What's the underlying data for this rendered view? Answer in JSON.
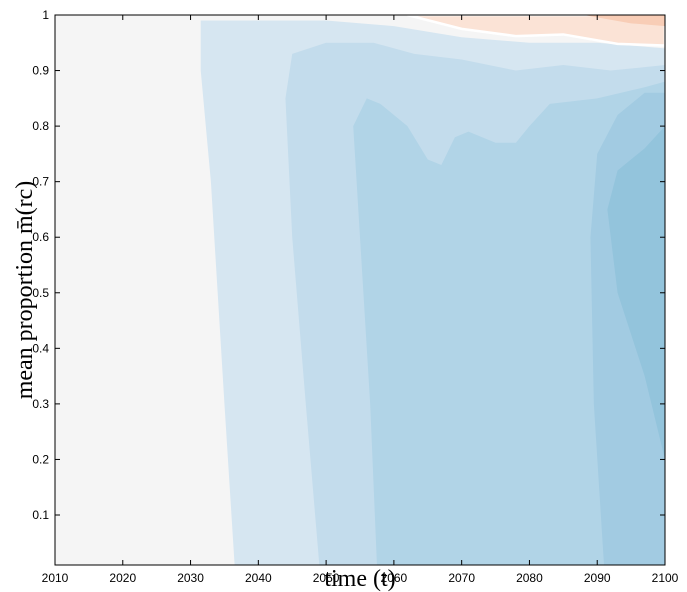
{
  "chart_data": {
    "type": "contour",
    "xlabel": "time (t)",
    "ylabel": "mean proportion m̄(rc)",
    "xlim": [
      2010,
      2100
    ],
    "ylim": [
      0.01,
      1
    ],
    "xticks": [
      2010,
      2020,
      2030,
      2040,
      2050,
      2060,
      2070,
      2080,
      2090,
      2100
    ],
    "yticks": [
      0.1,
      0.2,
      0.3,
      0.4,
      0.5,
      0.6,
      0.7,
      0.8,
      0.9,
      1
    ],
    "background": "#f5f5f5",
    "regions": [
      {
        "color": "#d6e6f1",
        "x": [
          2036.5,
          2035,
          2033,
          2031.5,
          2031.5,
          2050,
          2060,
          2070,
          2080,
          2090,
          2100,
          2100
        ],
        "y": [
          0.01,
          0.3,
          0.7,
          0.9,
          0.99,
          0.99,
          0.98,
          0.96,
          0.95,
          0.95,
          0.94,
          0.01
        ]
      },
      {
        "color": "#c3dcec",
        "x": [
          2049,
          2047,
          2045,
          2044,
          2045,
          2050,
          2057,
          2063,
          2070,
          2078,
          2085,
          2092,
          2100,
          2100
        ],
        "y": [
          0.01,
          0.3,
          0.6,
          0.85,
          0.93,
          0.95,
          0.95,
          0.93,
          0.92,
          0.9,
          0.91,
          0.9,
          0.91,
          0.01
        ]
      },
      {
        "color": "#b1d4e7",
        "x": [
          2057.5,
          2056.5,
          2055,
          2054,
          2056,
          2058,
          2062,
          2065,
          2067,
          2069,
          2071,
          2075,
          2078,
          2080,
          2083,
          2090,
          2097,
          2100,
          2100
        ],
        "y": [
          0.01,
          0.3,
          0.6,
          0.8,
          0.85,
          0.84,
          0.8,
          0.74,
          0.73,
          0.78,
          0.79,
          0.77,
          0.77,
          0.8,
          0.84,
          0.85,
          0.87,
          0.88,
          0.01
        ]
      },
      {
        "color": "#a2cbe2",
        "x": [
          2091,
          2089.5,
          2089,
          2090,
          2093,
          2097,
          2100,
          2100
        ],
        "y": [
          0.01,
          0.3,
          0.6,
          0.75,
          0.82,
          0.86,
          0.86,
          0.01
        ]
      },
      {
        "color": "#93c4dc",
        "x": [
          2100,
          2097,
          2093,
          2091.5,
          2093,
          2097,
          2100
        ],
        "y": [
          0.2,
          0.35,
          0.5,
          0.65,
          0.72,
          0.76,
          0.8
        ]
      },
      {
        "color": "#fbe3d6",
        "x": [
          2062,
          2070,
          2078,
          2085,
          2093,
          2100,
          2100
        ],
        "y": [
          1,
          0.975,
          0.962,
          0.965,
          0.948,
          0.945,
          1
        ]
      },
      {
        "color": "#f8cdb6",
        "x": [
          2088,
          2095,
          2100,
          2100
        ],
        "y": [
          1,
          0.985,
          0.98,
          1
        ]
      }
    ]
  }
}
